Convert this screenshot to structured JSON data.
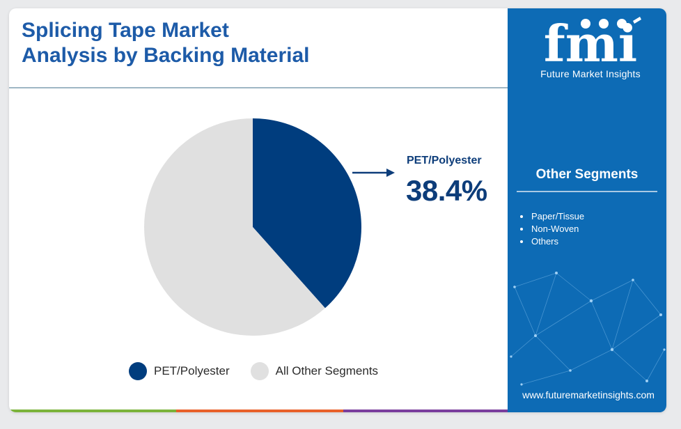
{
  "header": {
    "title_line1": "Splicing Tape Market",
    "title_line2": "Analysis by Backing Material"
  },
  "brand": {
    "logo_text": "fmi",
    "name": "Future Market Insights",
    "website": "www.futuremarketinsights.com"
  },
  "sidebar": {
    "segments_title": "Other Segments",
    "segments": [
      "Paper/Tissue",
      "Non-Woven",
      "Others"
    ]
  },
  "callout": {
    "label": "PET/Polyester",
    "value": "38.4%"
  },
  "colors": {
    "primary": "#003d7e",
    "secondary": "#e0e0e0",
    "title": "#1d5ba8",
    "sidebar": "#0d6bb5"
  },
  "chart_data": {
    "type": "pie",
    "slices": [
      {
        "label": "PET/Polyester",
        "value": 38.4,
        "color": "#003d7e"
      },
      {
        "label": "All Other Segments",
        "value": 61.6,
        "color": "#e0e0e0"
      }
    ],
    "legend": [
      "PET/Polyester",
      "All Other Segments"
    ],
    "legend_position": "bottom"
  },
  "bottom_bar_colors": [
    "#7bb33a",
    "#e8602a",
    "#7a3e9d",
    "#0d6bb5"
  ]
}
